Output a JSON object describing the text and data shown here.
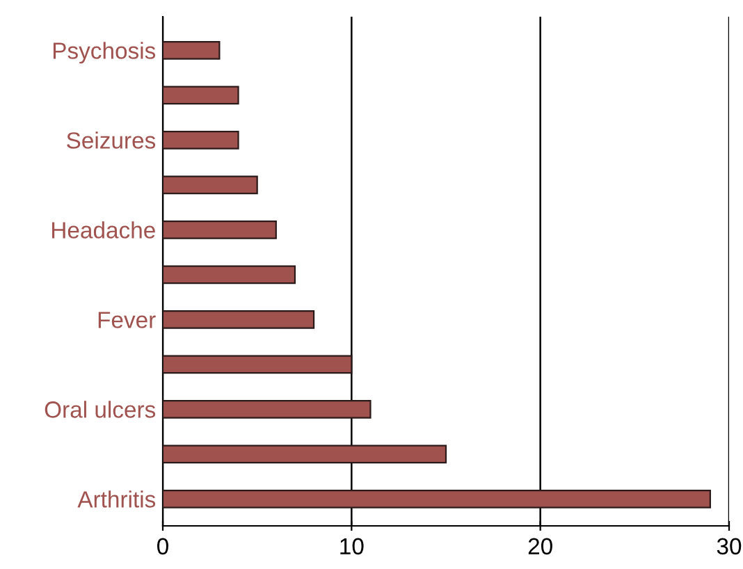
{
  "chart_data": {
    "type": "bar",
    "orientation": "horizontal",
    "categories": [
      "Psychosis",
      null,
      "Seizures",
      null,
      "Headache",
      null,
      "Fever",
      null,
      "Oral ulcers",
      null,
      "Arthritis"
    ],
    "values": [
      3,
      4,
      4,
      5,
      6,
      7,
      8,
      10,
      11,
      15,
      29
    ],
    "color": "#a0524f",
    "xlim": [
      0,
      30
    ],
    "xticks": [
      0,
      10,
      20,
      30
    ],
    "grid": "x"
  }
}
